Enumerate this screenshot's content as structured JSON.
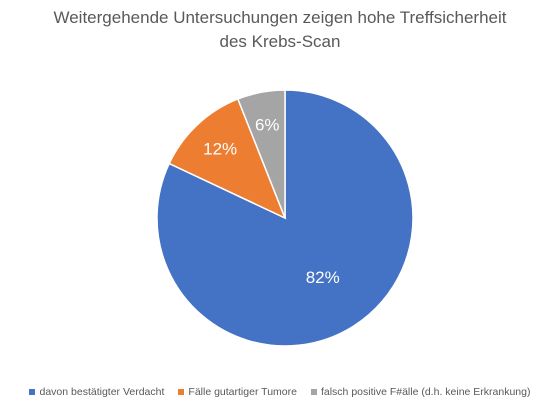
{
  "chart_data": {
    "type": "pie",
    "title_lines": [
      "Weitergehende Untersuchungen zeigen hohe Treffsicherheit",
      "des Krebs-Scan"
    ],
    "categories": [
      "davon bestätigter Verdacht",
      "Fälle gutartiger Tumore",
      "falsch positive F#älle (d.h. keine Erkrankung)"
    ],
    "values": [
      82,
      12,
      6
    ],
    "labels": [
      "82%",
      "12%",
      "6%"
    ],
    "colors": [
      "#4472C4",
      "#ED7D31",
      "#A5A5A5"
    ],
    "start_angle_deg": 0,
    "direction": "clockwise",
    "legend_position": "bottom",
    "label_color": "#ffffff"
  }
}
